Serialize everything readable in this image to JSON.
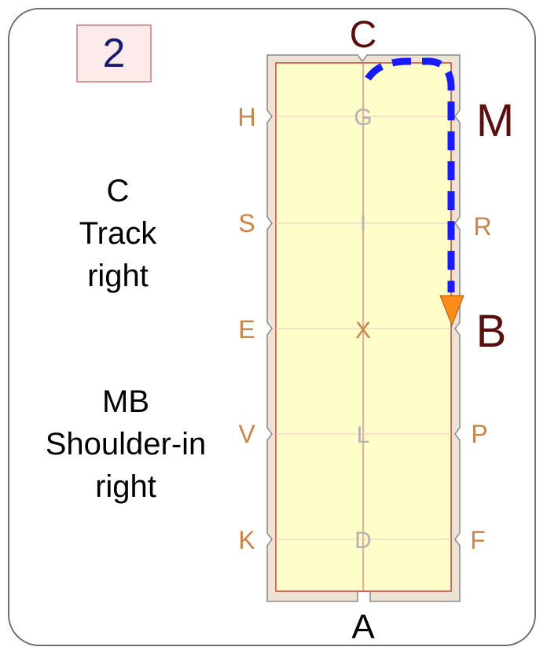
{
  "test_number": "2",
  "instructions": [
    {
      "lines": [
        "C",
        "Track",
        "right"
      ]
    },
    {
      "lines": [
        "MB",
        "Shoulder-in",
        "right"
      ]
    }
  ],
  "arena": {
    "end_letters": {
      "top": "C",
      "bottom": "A"
    },
    "left_letters": [
      "H",
      "S",
      "E",
      "V",
      "K"
    ],
    "right_letters": [
      "M",
      "R",
      "B",
      "P",
      "F"
    ],
    "center_letters": [
      "G",
      "I",
      "X",
      "L",
      "D"
    ],
    "highlighted": [
      "C",
      "M",
      "B"
    ]
  },
  "path": {
    "description_points": [
      "C",
      "M",
      "B"
    ],
    "style": "dashed",
    "end": "arrow"
  },
  "colors": {
    "arena_fill": "#fffdc8",
    "arena_border": "#c8453c",
    "outer_track": "#ede3d4",
    "letter_normal": "#c8864a",
    "letter_highlight": "#5a0f0f",
    "center_letter": "#b3b3b3",
    "center_x": "#c8864a",
    "path": "#1a1aff",
    "arrow": "#ff8c1a"
  }
}
